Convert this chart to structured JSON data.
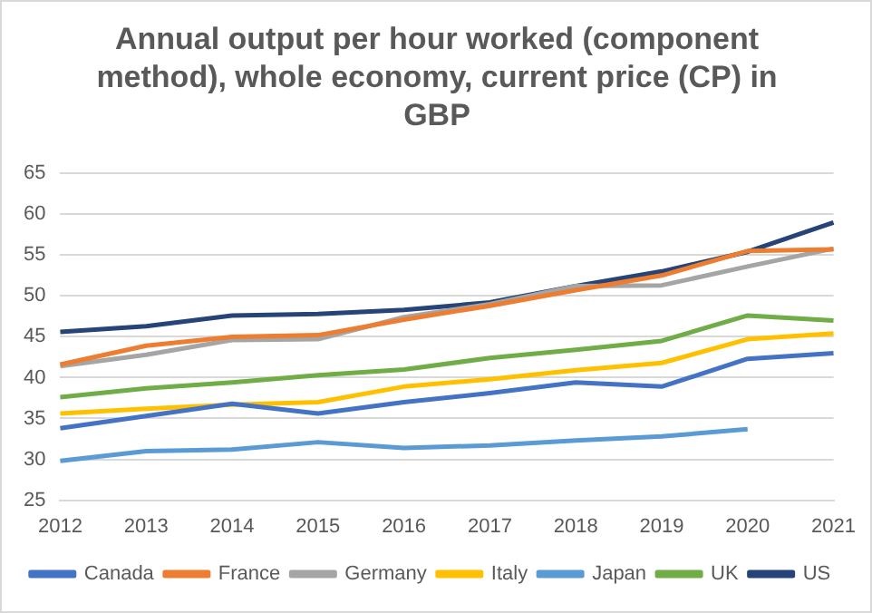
{
  "chart_data": {
    "type": "line",
    "title": "Annual output per hour worked (component method), whole economy, current price (CP) in GBP",
    "categories": [
      "2012",
      "2013",
      "2014",
      "2015",
      "2016",
      "2017",
      "2018",
      "2019",
      "2020",
      "2021"
    ],
    "series": [
      {
        "name": "Canada",
        "color": "#4472c4",
        "values": [
          33.8,
          35.3,
          36.8,
          35.6,
          37.0,
          38.1,
          39.4,
          38.9,
          42.3,
          43.0
        ]
      },
      {
        "name": "France",
        "color": "#ed7d31",
        "values": [
          41.6,
          43.9,
          45.0,
          45.2,
          47.1,
          48.8,
          50.7,
          52.5,
          55.5,
          55.7
        ]
      },
      {
        "name": "Germany",
        "color": "#a5a5a5",
        "values": [
          41.4,
          42.8,
          44.6,
          44.7,
          47.4,
          49.0,
          51.2,
          51.3,
          53.6,
          55.8
        ]
      },
      {
        "name": "Italy",
        "color": "#ffc000",
        "values": [
          35.6,
          36.2,
          36.7,
          37.0,
          38.9,
          39.8,
          40.9,
          41.8,
          44.7,
          45.4
        ]
      },
      {
        "name": "Japan",
        "color": "#5b9bd5",
        "values": [
          29.8,
          31.0,
          31.2,
          32.1,
          31.4,
          31.7,
          32.3,
          32.8,
          33.7,
          null
        ]
      },
      {
        "name": "UK",
        "color": "#70ad47",
        "values": [
          37.6,
          38.7,
          39.4,
          40.3,
          41.0,
          42.4,
          43.4,
          44.5,
          47.6,
          47.0
        ]
      },
      {
        "name": "US",
        "color": "#264478",
        "values": [
          45.6,
          46.3,
          47.6,
          47.8,
          48.3,
          49.2,
          51.2,
          53.0,
          55.4,
          59.0
        ]
      }
    ],
    "ylim": [
      25,
      65
    ],
    "yticks": [
      25,
      30,
      35,
      40,
      45,
      50,
      55,
      60,
      65
    ],
    "grid": "y",
    "legend": "bottom",
    "marker": "none",
    "line_style": "solid"
  }
}
